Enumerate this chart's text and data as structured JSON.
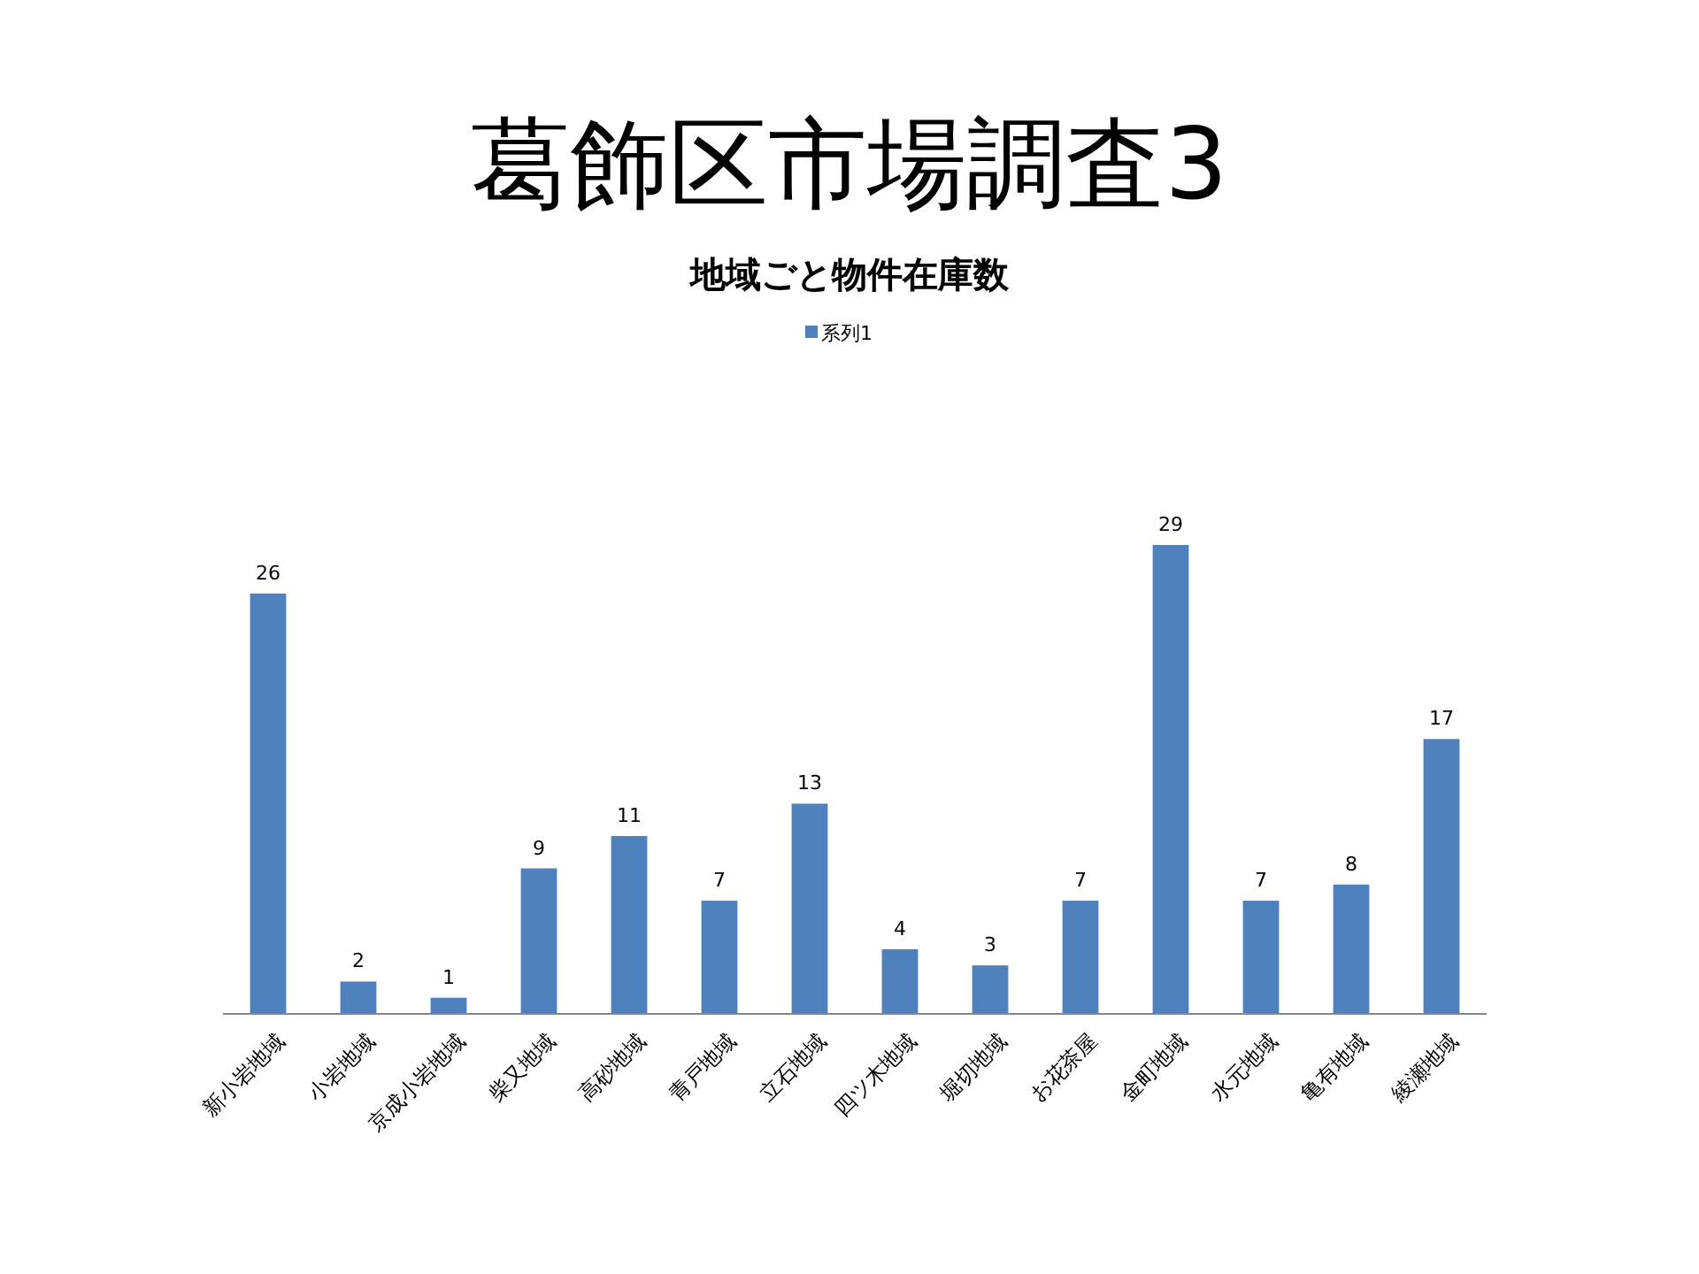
{
  "chart_data": {
    "type": "bar",
    "title": "葛飾区市場調査3",
    "subtitle": "地域ごと物件在庫数",
    "categories": [
      "新小岩地域",
      "小岩地域",
      "京成小岩地域",
      "柴又地域",
      "高砂地域",
      "青戸地域",
      "立石地域",
      "四ツ木地域",
      "堀切地域",
      "お花茶屋",
      "金町地域",
      "水元地域",
      "亀有地域",
      "綾瀬地域"
    ],
    "series": [
      {
        "name": "系列1",
        "color": "#4f81bd",
        "values": [
          26,
          2,
          1,
          9,
          11,
          7,
          13,
          4,
          3,
          7,
          29,
          7,
          8,
          17
        ]
      }
    ],
    "data_labels": true,
    "legend": "top"
  }
}
